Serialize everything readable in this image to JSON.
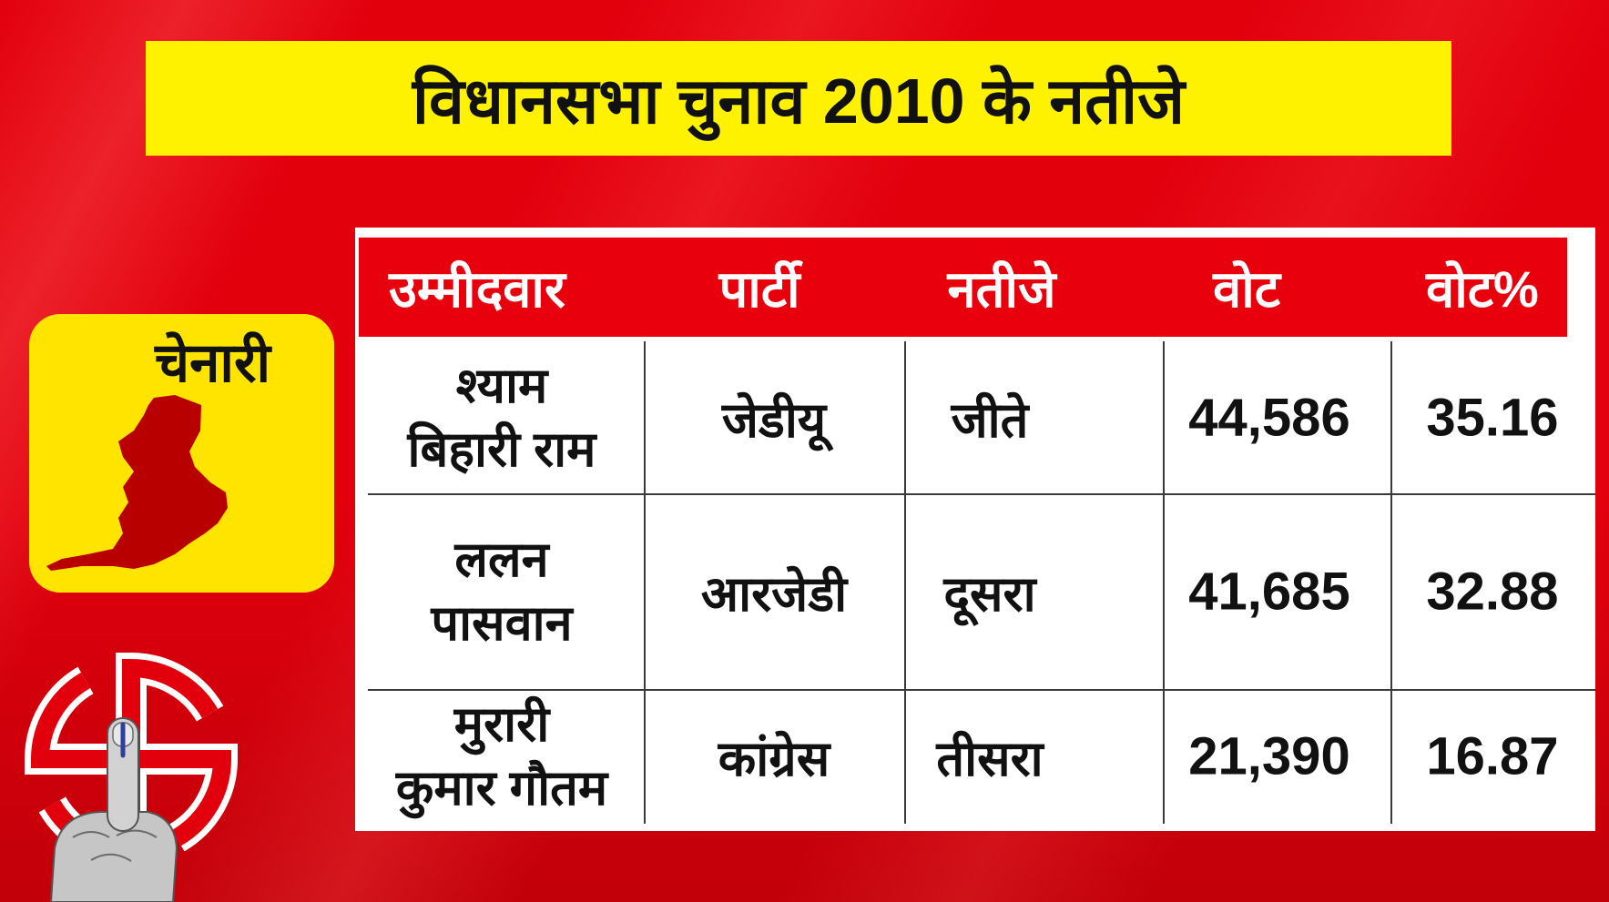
{
  "title": "विधानसभा चुनाव 2010 के नतीजे",
  "constituency": {
    "name": "चेनारी",
    "map_icon": "constituency-map-icon"
  },
  "table": {
    "headers": {
      "candidate": "उम्मीदवार",
      "party": "पार्टी",
      "result": "नतीजे",
      "votes": "वोट",
      "vote_percent": "वोट%"
    },
    "rows": [
      {
        "candidate": [
          "श्याम",
          "बिहारी राम"
        ],
        "party": "जेडीयू",
        "result": "जीते",
        "votes": "44,586",
        "vote_percent": "35.16"
      },
      {
        "candidate": [
          "ललन",
          "पासवान"
        ],
        "party": "आरजेडी",
        "result": "दूसरा",
        "votes": "41,685",
        "vote_percent": "32.88"
      },
      {
        "candidate": [
          "मुरारी",
          "कुमार गौतम"
        ],
        "party": "कांग्रेस",
        "result": "तीसरा",
        "votes": "21,390",
        "vote_percent": "16.87"
      }
    ]
  },
  "icons": {
    "emblem": "election-emblem-icon",
    "finger": "inked-finger-icon"
  },
  "colors": {
    "background": "#e2000d",
    "title_bar": "#fff200",
    "constituency_card": "#ffe400",
    "header_row": "#e8000d",
    "header_text": "#ffffff",
    "map": "#b80000",
    "text": "#111111"
  }
}
